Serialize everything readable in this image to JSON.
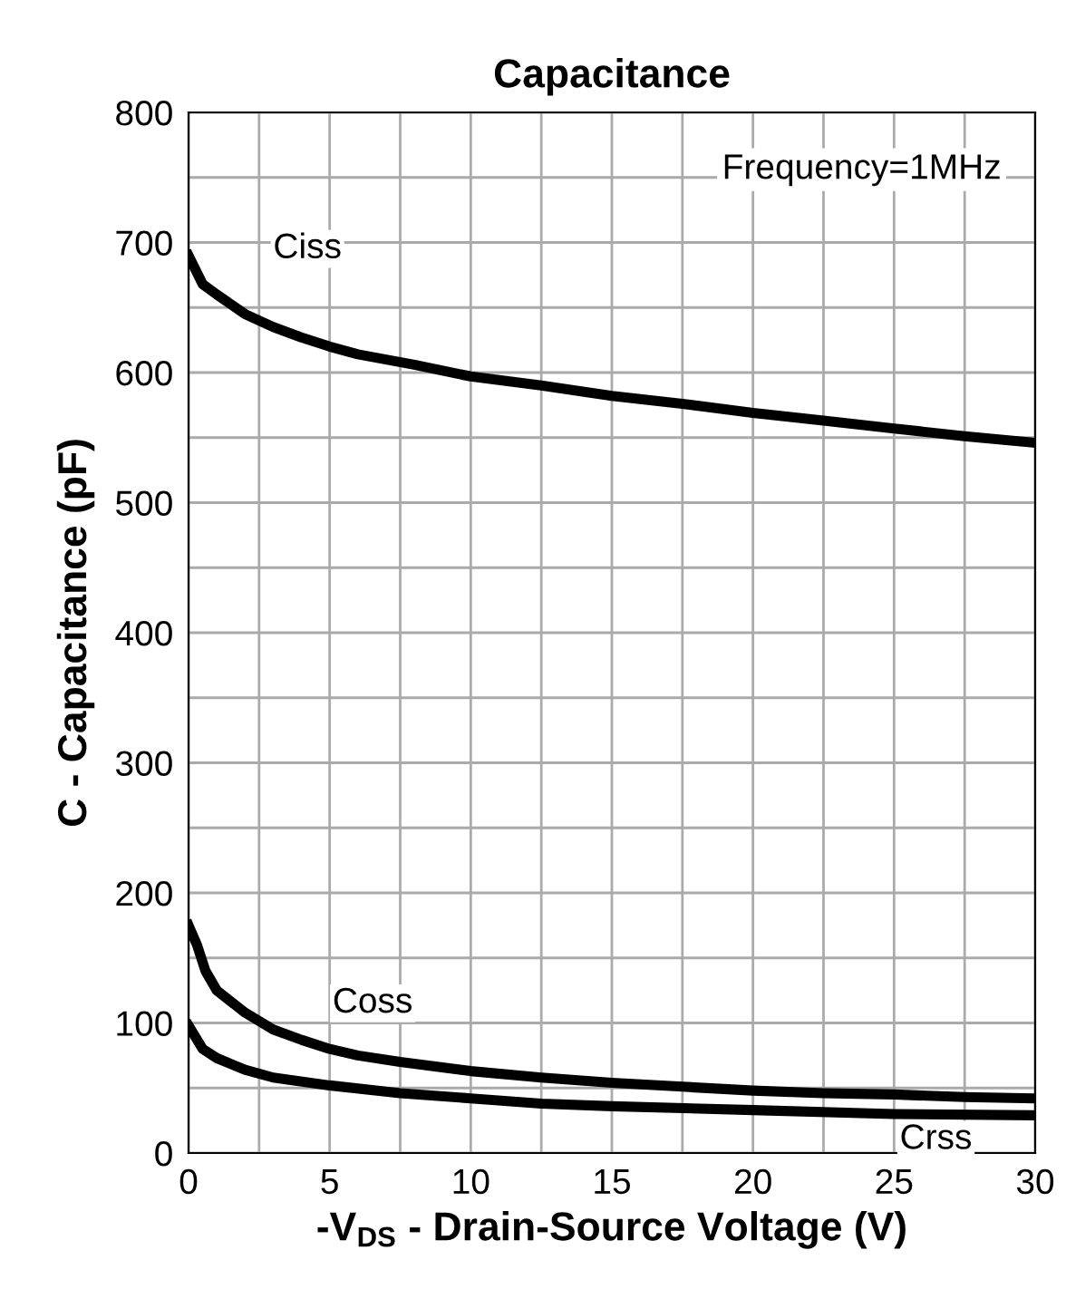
{
  "chart_data": {
    "type": "line",
    "title": "Capacitance",
    "xlabel": "-V$_{DS}$ - Drain-Source Voltage (V)",
    "ylabel": "C - Capacitance (pF)",
    "annotations": [
      "Frequency=1MHz"
    ],
    "xlim": [
      0,
      30
    ],
    "ylim": [
      0,
      800
    ],
    "xticks": [
      0,
      {
        "value": 2.5,
        "label": null
      },
      5,
      {
        "value": 7.5,
        "label": null
      },
      10,
      {
        "value": 12.5,
        "label": null
      },
      15,
      {
        "value": 17.5,
        "label": null
      },
      20,
      {
        "value": 22.5,
        "label": null
      },
      25,
      {
        "value": 27.5,
        "label": null
      },
      30
    ],
    "yticks": [
      0,
      {
        "value": 50,
        "label": null
      },
      100,
      {
        "value": 150,
        "label": null
      },
      200,
      {
        "value": 250,
        "label": null
      },
      300,
      {
        "value": 350,
        "label": null
      },
      400,
      {
        "value": 450,
        "label": null
      },
      500,
      {
        "value": 550,
        "label": null
      },
      600,
      {
        "value": 650,
        "label": null
      },
      700,
      {
        "value": 750,
        "label": null
      },
      800
    ],
    "grid": true,
    "legend": false,
    "series": [
      {
        "name": "Ciss",
        "color": "#000000",
        "x": [
          0,
          0.5,
          1,
          2,
          3,
          4,
          5,
          6,
          8,
          10,
          12.5,
          15,
          17.5,
          20,
          22.5,
          25,
          27.5,
          30
        ],
        "values": [
          690,
          668,
          660,
          645,
          635,
          627,
          620,
          614,
          606,
          597,
          590,
          582,
          576,
          569,
          563,
          557,
          551,
          546
        ]
      },
      {
        "name": "Coss",
        "color": "#000000",
        "x": [
          0,
          0.3,
          0.6,
          1,
          2,
          3,
          4,
          5,
          6,
          7.5,
          10,
          12.5,
          15,
          17.5,
          20,
          22.5,
          25,
          27.5,
          30
        ],
        "values": [
          175,
          160,
          140,
          125,
          108,
          95,
          87,
          80,
          75,
          70,
          63,
          58,
          54,
          51,
          48,
          46,
          45,
          43,
          42
        ]
      },
      {
        "name": "Crss",
        "color": "#000000",
        "x": [
          0,
          0.5,
          1,
          2,
          3,
          5,
          7.5,
          10,
          12.5,
          15,
          20,
          25,
          30
        ],
        "values": [
          98,
          80,
          73,
          64,
          58,
          52,
          46,
          42,
          38,
          36,
          33,
          30,
          29
        ]
      }
    ]
  }
}
